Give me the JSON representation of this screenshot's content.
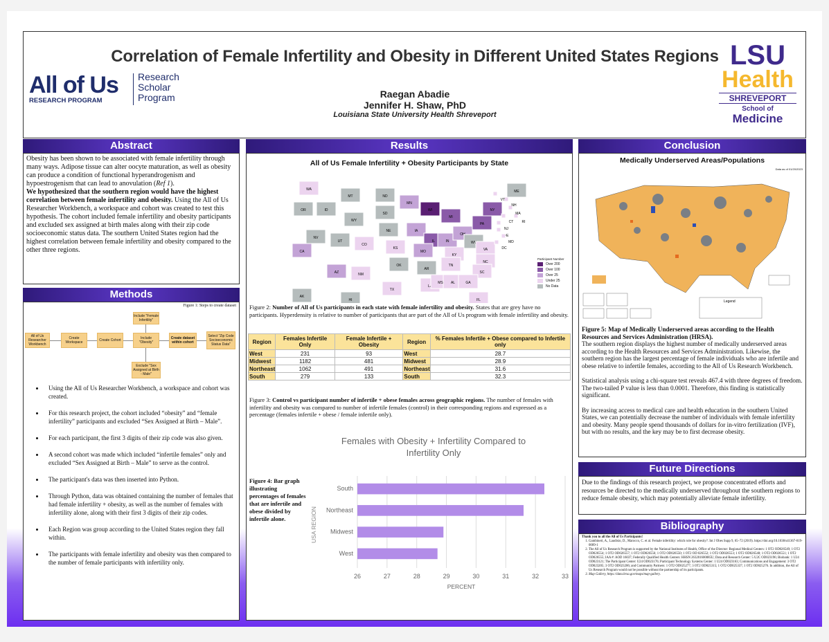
{
  "title": "Correlation of Female Infertility and Obesity in Different United States Regions",
  "authors": [
    "Raegan Abadie",
    "Jennifer H. Shaw, PhD"
  ],
  "affiliation": "Louisiana State University Health Shreveport",
  "logo_left": {
    "main": "All of Us",
    "sub": "RESEARCH PROGRAM",
    "side": [
      "Research",
      "Scholar",
      "Program"
    ]
  },
  "logo_right": {
    "lsu": "LSU",
    "health": "Health",
    "shreveport": "SHREVEPORT",
    "school": "School of",
    "medicine": "Medicine"
  },
  "colors": {
    "purple": "#3f2a8c",
    "gold": "#f5b82e",
    "bar": "#b28ce8",
    "flow": "#f6d08a"
  },
  "abstract": {
    "heading": "Abstract",
    "p1": "Obesity has been shown to be associated with female infertility through many ways. Adipose tissue can alter oocyte maturation, as well as obesity can produce a condition of functional hyperandrogenism and hypoestrogenism that can lead to anovulation (",
    "ref": "Ref 1",
    "p1_end": ").",
    "hyp": "We hypothesized that the southern region would have the highest correlation between female infertility and obesity.",
    "p2": " Using the All of Us Researcher Workbench, a workspace and cohort was created to test this hypothesis. The cohort included female infertility and obesity participants and excluded sex assigned at birth males along with their zip code socioeconomic status data. The southern United States region had the highest correlation between female infertility and obesity compared to the other three regions."
  },
  "methods": {
    "heading": "Methods",
    "fig_caption": "Figure 1: Steps to create dataset",
    "flow": [
      "All of Us Researcher Workbench",
      "Create Workspace",
      "Create Cohort",
      "Include \"Obesity\"",
      "Create dataset within cohort",
      "Select \"Zip Code Socioeconomic Status Data\"",
      "Include \"Female Infertility\"",
      "Exclude \"Sex Assigned at Birth - Male\""
    ],
    "bullets": [
      "Using the All of Us Researcher Workbench, a workspace and cohort was created.",
      "For this research project, the cohort included “obesity” and “female infertility” participants and excluded “Sex Assigned at Birth – Male”.",
      "For each participant, the first 3 digits of their zip code was also given.",
      "A second cohort was made which included  “infertile females” only and excluded “Sex Assigned at Birth – Male” to serve as the control.",
      "The participant's data was then inserted into Python.",
      "Through Python, data was obtained containing the number of females that had female infertility + obesity, as well as the number of females with infertility alone, along with their first 3 digits of their zip codes.",
      "Each Region was group according to the United States region they fall within.",
      "The participants with female infertility and obesity was then compared to the number of female participants with infertility only."
    ]
  },
  "results": {
    "heading": "Results",
    "map_title": "All of Us Female Infertility + Obesity Participants by State",
    "legend_title": "Participant Number",
    "legend": [
      {
        "label": "Over 200",
        "color": "#5a1f73"
      },
      {
        "label": "Over 100",
        "color": "#8a5aa8"
      },
      {
        "label": "Over 25",
        "color": "#c3a3d6"
      },
      {
        "label": "Under 25",
        "color": "#ecd4ef"
      },
      {
        "label": "No Data",
        "color": "#b5bcbc"
      }
    ],
    "states": [
      "WA",
      "OR",
      "ID",
      "MT",
      "WY",
      "ND",
      "SD",
      "NE",
      "MN",
      "WI",
      "MI",
      "IA",
      "IL",
      "IN",
      "OH",
      "PA",
      "NY",
      "ME",
      "NV",
      "UT",
      "CO",
      "KS",
      "MO",
      "KY",
      "WV",
      "VA",
      "CA",
      "AZ",
      "NM",
      "OK",
      "AR",
      "TN",
      "NC",
      "SC",
      "TX",
      "LA",
      "MS",
      "AL",
      "GA",
      "FL",
      "AK",
      "HI",
      "NJ",
      "DE",
      "MD",
      "DC",
      "CT",
      "RI",
      "MA",
      "NH",
      "VT"
    ],
    "fig2_bold": "Number of All of Us participants in each state with female infertility and obesity.",
    "fig2_label": "Figure 2: ",
    "fig2_rest": " States that are grey have no participants. Hyperdensity is relative to number of participants that are part of the All of Us program with female infertility and obesity.",
    "table": {
      "headers": [
        "Region",
        "Females Infertile Only",
        "Female Infertile + Obesity",
        "Region",
        "% Females Infertile + Obese compared to Infertile only"
      ],
      "rows": [
        [
          "West",
          "231",
          "93",
          "West",
          "28.7"
        ],
        [
          "Midwest",
          "1182",
          "481",
          "Midwest",
          "28.9"
        ],
        [
          "Northeast",
          "1062",
          "491",
          "Northeast",
          "31.6"
        ],
        [
          "South",
          "279",
          "133",
          "South",
          "32.3"
        ]
      ]
    },
    "fig3_label": "Figure 3: ",
    "fig3_bold": "Control vs participant number of infertile + obese females across geographic regions.",
    "fig3_rest": " The number of females with infertility and obesity was compared to number of infertile females (control) in their corresponding regions and expressed as a percentage (females infertile + obese / female infertile only).",
    "fig4_caption": "Figure 4: Bar graph illustrating percentages of females that are infertile and obese divided by infertile alone."
  },
  "chart_data": {
    "type": "bar",
    "orientation": "horizontal",
    "title": "Females with Obesity + Infertility Compared to Infertility Only",
    "xlabel": "PERCENT",
    "ylabel": "USA REGION",
    "categories": [
      "South",
      "Northeast",
      "Midwest",
      "West"
    ],
    "values": [
      32.3,
      31.6,
      28.9,
      28.7
    ],
    "xlim": [
      26,
      33
    ],
    "xticks": [
      "26",
      "27",
      "28",
      "29",
      "30",
      "31",
      "32",
      "33"
    ],
    "grid": true
  },
  "conclusion": {
    "heading": "Conclusion",
    "map_title": "Medically Underserved Areas/Populations",
    "map_date": "Data as of 01/20/2023",
    "map_legend_title": "Legend",
    "fig5_label": "Figure 5: Map of Medically Underserved areas according to the Health Resources and Services Administration (HRSA).",
    "p1": "The southern region displays the highest number of medically underserved areas according to the Health Resources and Services Administration. Likewise, the southern region has the largest percentage of female individuals who are infertile and obese relative to infertile females, according to the All of Us Research Workbench.",
    "p2": "Statistical analysis using a chi-square test reveals 467.4 with three degrees of freedom. The two-tailed P value is less than 0.0001. Therefore, this finding is statistically significant.",
    "p3": "By increasing access to medical care and health education in the southern United States, we can potentially decrease the number of individuals with female infertility and obesity. Many people spend thousands of dollars for in-vitro fertilization (IVF), but with no results, and the key may be to first decrease obesity."
  },
  "future": {
    "heading": "Future Directions",
    "text": "Due to the findings of this research project, we propose concentrated efforts and resources be directed to the medically underserved throughout the southern regions to reduce female obesity, which may potentially alleviate female infertility."
  },
  "bibliography": {
    "heading": "Bibliography",
    "thanks": "Thank you to all the All of Us Participants!",
    "refs": [
      "Gambineri, A., Laudisio, D., Marocco, C. et al. Female infertility: which role for obesity?. Int J Obes Supp 9, 65–72 (2019). https://doi.org/10.1038/s41367-019-0009-1",
      "The All of Us Research Program is supported by the National Institutes of Health, Office of the Director: Regional Medical Centers: 1 OT2 OD026549; 1 OT2 OD026554; 1 OT2 OD026557; 1 OT2 OD026556; 1 OT2 OD026550; 1 OT2 OD 026552; 1 OT2 OD026553; 1 OT2 OD026548; 1 OT2 OD026551; 1 OT2 OD026555; IAA #: AOD 16037; Federally Qualified Health Centers: HHSN 263201600085U; Data and Research Center: 5 U2C OD023196; Biobank: 1 U24 OD023121; The Participant Center: U24 OD023176; Participant Technology Systems Center: 1 U24 OD023163; Communications and Engagement: 3 OT2 OD023205; 3 OT2 OD023206; and Community Partners: 1 OT2 OD025277; 3 OT2 OD025315; 1 OT2 OD025337; 1 OT2 OD025276. In addition, the All of Us Research Program would not be possible without the partnership of its participants.",
      "Map Gallery, https://data.hrsa.gov/maps/map-gallery."
    ]
  }
}
